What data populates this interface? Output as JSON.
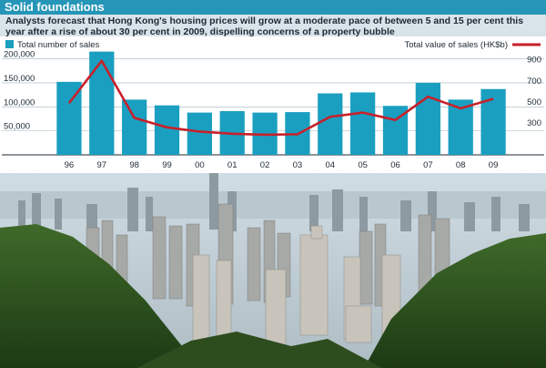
{
  "header": {
    "title": "Solid foundations"
  },
  "subtitle": "Analysts forecast that Hong Kong's housing prices will grow at a moderate pace of between 5 and 15 per cent this year after a rise of about 30 per cent in 2009, dispelling concerns of a property bubble",
  "colors": {
    "bar": "#1a9fc0",
    "line": "#c8202a",
    "header": "#2596b8"
  },
  "chart_data": {
    "type": "bar",
    "categories": [
      "96",
      "97",
      "98",
      "99",
      "00",
      "01",
      "02",
      "03",
      "04",
      "05",
      "06",
      "07",
      "08",
      "09"
    ],
    "series": [
      {
        "name": "Total number of sales",
        "type": "bar",
        "axis": "left",
        "values": [
          152000,
          215000,
          115000,
          103000,
          88000,
          91000,
          88000,
          89000,
          128000,
          130000,
          102000,
          150000,
          115000,
          137000
        ]
      },
      {
        "name": "Total value of sales (HK$b)",
        "type": "line",
        "axis": "right",
        "values": [
          490,
          890,
          350,
          260,
          220,
          200,
          190,
          195,
          360,
          400,
          330,
          550,
          440,
          530
        ]
      }
    ],
    "y_left": {
      "ticks": [
        "200,000",
        "150,000",
        "100,000",
        "50,000"
      ],
      "tick_values": [
        200000,
        150000,
        100000,
        50000
      ],
      "ylim": [
        0,
        220000
      ]
    },
    "y_right": {
      "ticks": [
        "900",
        "700",
        "500",
        "300"
      ],
      "tick_values": [
        900,
        700,
        500,
        300
      ],
      "ylim": [
        0,
        1000
      ]
    },
    "legend": {
      "bar_label": "Total number of sales",
      "line_label": "Total value of sales (HK$b)"
    }
  }
}
